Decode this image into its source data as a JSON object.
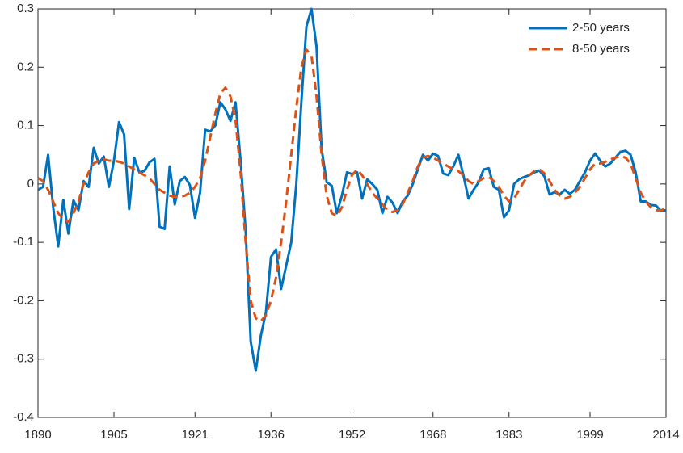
{
  "chart_data": {
    "type": "line",
    "x": [
      1890,
      1891,
      1892,
      1893,
      1894,
      1895,
      1896,
      1897,
      1898,
      1899,
      1900,
      1901,
      1902,
      1903,
      1904,
      1905,
      1906,
      1907,
      1908,
      1909,
      1910,
      1911,
      1912,
      1913,
      1914,
      1915,
      1916,
      1917,
      1918,
      1919,
      1920,
      1921,
      1922,
      1923,
      1924,
      1925,
      1926,
      1927,
      1928,
      1929,
      1930,
      1931,
      1932,
      1933,
      1934,
      1935,
      1936,
      1937,
      1938,
      1939,
      1940,
      1941,
      1942,
      1943,
      1944,
      1945,
      1946,
      1947,
      1948,
      1949,
      1950,
      1951,
      1952,
      1953,
      1954,
      1955,
      1956,
      1957,
      1958,
      1959,
      1960,
      1961,
      1962,
      1963,
      1964,
      1965,
      1966,
      1967,
      1968,
      1969,
      1970,
      1971,
      1972,
      1973,
      1974,
      1975,
      1976,
      1977,
      1978,
      1979,
      1980,
      1981,
      1982,
      1983,
      1984,
      1985,
      1986,
      1987,
      1988,
      1989,
      1990,
      1991,
      1992,
      1993,
      1994,
      1995,
      1996,
      1997,
      1998,
      1999,
      2000,
      2001,
      2002,
      2003,
      2004,
      2005,
      2006,
      2007,
      2008,
      2009,
      2010,
      2011,
      2012,
      2013,
      2014
    ],
    "series": [
      {
        "name": "2-50 years",
        "color": "#0072bd",
        "linestyle": "solid",
        "values": [
          -0.01,
          -0.005,
          0.05,
          -0.04,
          -0.107,
          -0.027,
          -0.085,
          -0.028,
          -0.045,
          0.005,
          -0.005,
          0.062,
          0.035,
          0.047,
          -0.005,
          0.04,
          0.106,
          0.085,
          -0.043,
          0.045,
          0.02,
          0.022,
          0.037,
          0.043,
          -0.073,
          -0.077,
          0.03,
          -0.035,
          0.005,
          0.012,
          -0.002,
          -0.058,
          -0.015,
          0.093,
          0.09,
          0.1,
          0.14,
          0.128,
          0.108,
          0.14,
          0.04,
          -0.08,
          -0.27,
          -0.32,
          -0.26,
          -0.22,
          -0.125,
          -0.112,
          -0.18,
          -0.14,
          -0.1,
          0.0,
          0.14,
          0.27,
          0.3,
          0.235,
          0.06,
          0.003,
          -0.003,
          -0.05,
          -0.02,
          0.02,
          0.017,
          0.02,
          -0.025,
          0.008,
          0.0,
          -0.01,
          -0.05,
          -0.022,
          -0.032,
          -0.05,
          -0.03,
          -0.02,
          0.0,
          0.025,
          0.05,
          0.04,
          0.052,
          0.048,
          0.018,
          0.015,
          0.03,
          0.05,
          0.015,
          -0.025,
          -0.01,
          0.003,
          0.025,
          0.027,
          -0.005,
          -0.01,
          -0.057,
          -0.045,
          0.0,
          0.008,
          0.012,
          0.015,
          0.02,
          0.023,
          0.013,
          -0.018,
          -0.014,
          -0.018,
          -0.01,
          -0.017,
          -0.01,
          0.005,
          0.02,
          0.04,
          0.052,
          0.04,
          0.03,
          0.035,
          0.045,
          0.055,
          0.057,
          0.05,
          0.02,
          -0.03,
          -0.03,
          -0.036,
          -0.037,
          -0.046,
          -0.045
        ]
      },
      {
        "name": "8-50 years",
        "color": "#d95319",
        "linestyle": "dashed",
        "values": [
          0.01,
          0.005,
          -0.01,
          -0.03,
          -0.05,
          -0.06,
          -0.065,
          -0.05,
          -0.03,
          0.0,
          0.02,
          0.035,
          0.04,
          0.042,
          0.04,
          0.04,
          0.038,
          0.035,
          0.03,
          0.025,
          0.02,
          0.015,
          0.01,
          0.0,
          -0.01,
          -0.015,
          -0.02,
          -0.022,
          -0.022,
          -0.02,
          -0.015,
          -0.005,
          0.01,
          0.04,
          0.08,
          0.12,
          0.155,
          0.165,
          0.15,
          0.11,
          0.02,
          -0.1,
          -0.2,
          -0.23,
          -0.235,
          -0.225,
          -0.2,
          -0.16,
          -0.1,
          -0.03,
          0.05,
          0.13,
          0.2,
          0.23,
          0.22,
          0.15,
          0.05,
          -0.02,
          -0.05,
          -0.055,
          -0.04,
          -0.01,
          0.015,
          0.025,
          0.015,
          0.0,
          -0.015,
          -0.025,
          -0.035,
          -0.045,
          -0.048,
          -0.045,
          -0.035,
          -0.015,
          0.005,
          0.03,
          0.045,
          0.048,
          0.045,
          0.04,
          0.035,
          0.03,
          0.025,
          0.022,
          0.015,
          0.005,
          0.0,
          0.005,
          0.01,
          0.012,
          0.005,
          -0.005,
          -0.02,
          -0.03,
          -0.025,
          -0.01,
          0.005,
          0.015,
          0.022,
          0.025,
          0.018,
          0.005,
          -0.01,
          -0.02,
          -0.025,
          -0.022,
          -0.015,
          -0.005,
          0.01,
          0.025,
          0.035,
          0.035,
          0.038,
          0.042,
          0.045,
          0.048,
          0.045,
          0.035,
          0.01,
          -0.015,
          -0.03,
          -0.04,
          -0.045,
          -0.045,
          -0.042
        ]
      }
    ],
    "xlim": [
      1890,
      2014
    ],
    "xticks": [
      1890,
      1905,
      1921,
      1936,
      1952,
      1968,
      1983,
      1999,
      2014
    ],
    "ylim": [
      -0.4,
      0.3
    ],
    "yticks": [
      -0.4,
      -0.3,
      -0.2,
      -0.1,
      0,
      0.1,
      0.2,
      0.3
    ],
    "grid": false,
    "legend": "top-right"
  }
}
